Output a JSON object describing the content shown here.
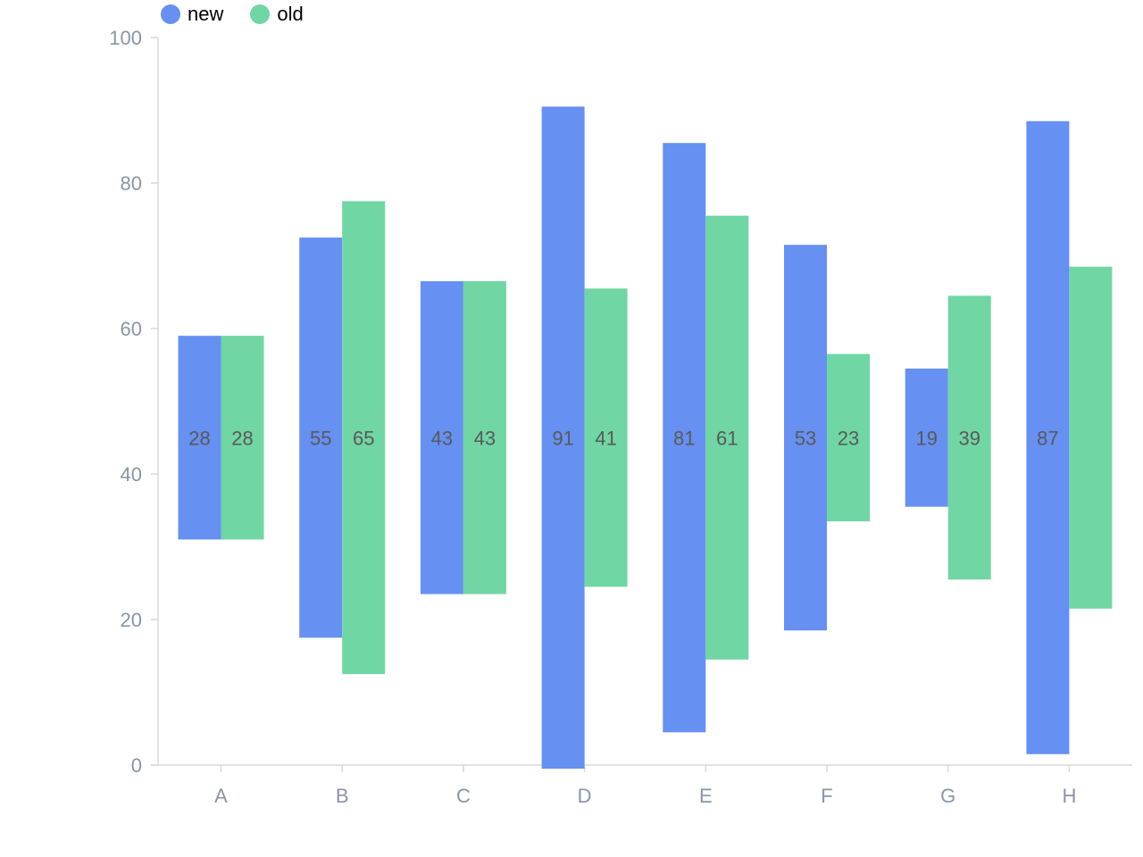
{
  "colors": {
    "new": "#6690f2",
    "old": "#70d6a3",
    "axis": "#d9d9d9",
    "tick_text": "#8a94a6",
    "label_text": "#595959"
  },
  "legend": [
    {
      "name": "new",
      "color": "#6690f2"
    },
    {
      "name": "old",
      "color": "#70d6a3"
    }
  ],
  "chart_data": {
    "type": "bar",
    "subtype": "centered range bars (value shown as bar span around midpoint 45)",
    "categories": [
      "A",
      "B",
      "C",
      "D",
      "E",
      "F",
      "G",
      "H"
    ],
    "center": 45,
    "ylim": [
      0,
      100
    ],
    "yticks": [
      0,
      20,
      40,
      60,
      80,
      100
    ],
    "legend_position": "top-left",
    "grid": false,
    "series": [
      {
        "name": "new",
        "values": [
          28,
          55,
          43,
          91,
          81,
          53,
          19,
          87
        ]
      },
      {
        "name": "old",
        "values": [
          28,
          65,
          43,
          41,
          61,
          23,
          39,
          47
        ]
      }
    ],
    "data_labels": {
      "new": [
        "28",
        "55",
        "43",
        "91",
        "81",
        "53",
        "19",
        "87"
      ],
      "old": [
        "28",
        "65",
        "43",
        "41",
        "61",
        "23",
        "39",
        ""
      ]
    }
  }
}
